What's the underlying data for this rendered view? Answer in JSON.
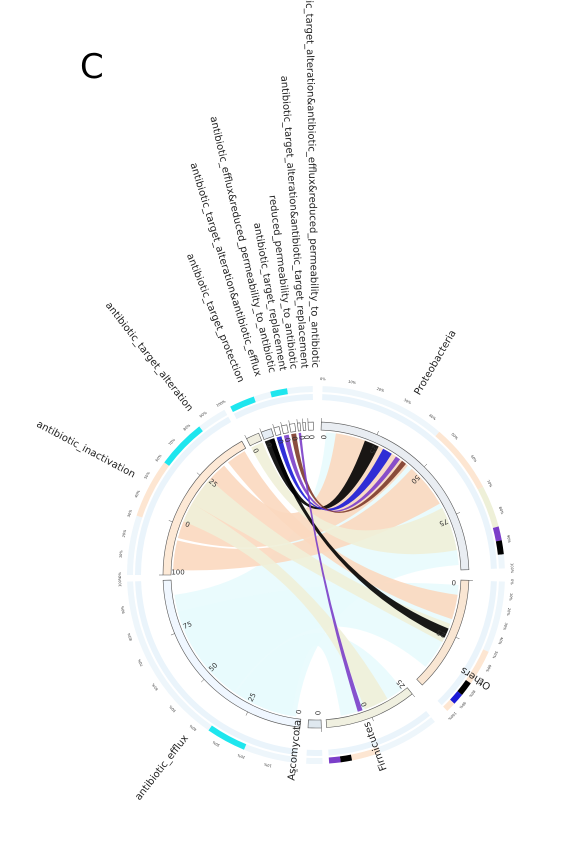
{
  "panel_letter": "C",
  "phyla_sectors": [
    {
      "id": "proteobacteria",
      "label": "Proteobacteria",
      "ticks": [
        "0",
        "25",
        "50",
        "75"
      ],
      "color": "#e9edf2",
      "bar_color": "#f0f2e0"
    },
    {
      "id": "others",
      "label": "Others",
      "ticks": [
        "0",
        "25"
      ],
      "color": "#f9e6d3",
      "bar_color": "#fde8d6"
    },
    {
      "id": "firmicutes",
      "label": "Firmicutes",
      "ticks": [
        "25",
        "0"
      ],
      "color": "#f0f0e0",
      "bar_color": "#e9edd8"
    },
    {
      "id": "ascomycota",
      "label": "Ascomycota",
      "ticks": [
        "0"
      ],
      "color": "#dfe8ef",
      "bar_color": "#e6eef6"
    }
  ],
  "mechanism_sectors": [
    {
      "id": "efflux",
      "label": "antibiotic_efflux",
      "ticks": [
        "0",
        "25",
        "50",
        "75"
      ],
      "color": "#f0f7ff"
    },
    {
      "id": "inactivation",
      "label": "antibiotic_inactivation",
      "ticks": [
        "100",
        "0",
        "25"
      ],
      "color": "#fde9d6"
    },
    {
      "id": "target-alteration",
      "label": "antibiotic_target_alteration",
      "ticks": [
        "0"
      ],
      "color": "#f0eee0"
    },
    {
      "id": "target-protection",
      "label": "antibiotic_target_protection",
      "ticks": [
        "0"
      ],
      "color": "#e6edf5"
    },
    {
      "id": "ta-efflux",
      "label": "antibiotic_target_alteration&antibiotic_efflux",
      "ticks": [
        "0"
      ],
      "color": "#ffffff"
    },
    {
      "id": "efflux-rp",
      "label": "antibiotic_efflux&reduced_permeability_to_antibiotic",
      "ticks": [
        "0"
      ],
      "color": "#ffffff"
    },
    {
      "id": "target-replacement",
      "label": "antibiotic_target_replacement",
      "ticks": [
        "0"
      ],
      "color": "#ffffff"
    },
    {
      "id": "reduced-permeability",
      "label": "reduced_permeability_to_antibiotic",
      "ticks": [
        "0"
      ],
      "color": "#ffffff"
    },
    {
      "id": "ta-tr",
      "label": "antibiotic_target_alteration&antibiotic_target_replacement",
      "ticks": [
        "0"
      ],
      "color": "#ffffff"
    },
    {
      "id": "ta-efflux-rp",
      "label": "antibiotic_target_alteration&antibiotic_efflux&reduced_permeability_to_antibiotic",
      "ticks": [
        "0"
      ],
      "color": "#ffffff"
    }
  ],
  "percent_ticks": [
    "0%",
    "10%",
    "20%",
    "30%",
    "40%",
    "50%",
    "60%",
    "70%",
    "80%",
    "90%",
    "100%"
  ],
  "colors": {
    "efflux": "#e8fbfd",
    "inactivation": "#fbd8bf",
    "target_alteration": "#efefd8",
    "cyan": "#1ee6ee",
    "black": "#000000",
    "blue": "#1a1ad6",
    "purple": "#7b3ec9",
    "brown": "#7d3b2a",
    "gray": "#9aa0a6"
  }
}
